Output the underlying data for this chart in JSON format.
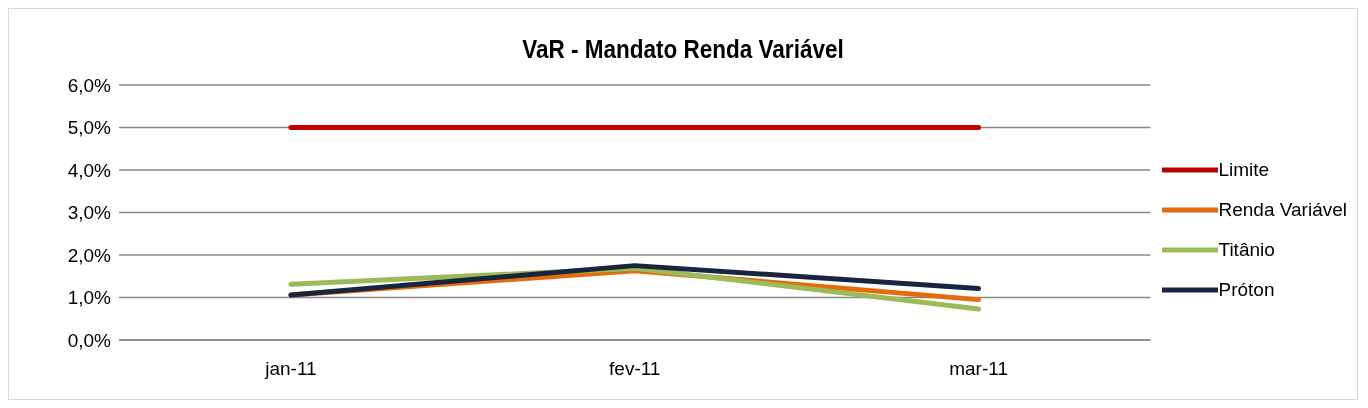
{
  "chart_data": {
    "type": "line",
    "title": "VaR - Mandato Renda Variável",
    "categories": [
      "jan-11",
      "fev-11",
      "mar-11"
    ],
    "series": [
      {
        "name": "Limite",
        "color": "#c00000",
        "values": [
          5.0,
          5.0,
          5.0
        ]
      },
      {
        "name": "Renda Variável",
        "color": "#e46c0a",
        "values": [
          1.06,
          1.63,
          0.95
        ]
      },
      {
        "name": "Titânio",
        "color": "#9bbb59",
        "values": [
          1.31,
          1.69,
          0.73
        ]
      },
      {
        "name": "Próton",
        "color": "#17253f",
        "values": [
          1.06,
          1.75,
          1.21
        ]
      }
    ],
    "ylim": [
      0,
      6
    ],
    "yticks": [
      {
        "value": 0,
        "label": "0,0%"
      },
      {
        "value": 1,
        "label": "1,0%"
      },
      {
        "value": 2,
        "label": "2,0%"
      },
      {
        "value": 3,
        "label": "3,0%"
      },
      {
        "value": 4,
        "label": "4,0%"
      },
      {
        "value": 5,
        "label": "5,0%"
      },
      {
        "value": 6,
        "label": "6,0%"
      }
    ],
    "grid": "y",
    "legend": "right",
    "marker": "none",
    "line_style": "solid"
  }
}
